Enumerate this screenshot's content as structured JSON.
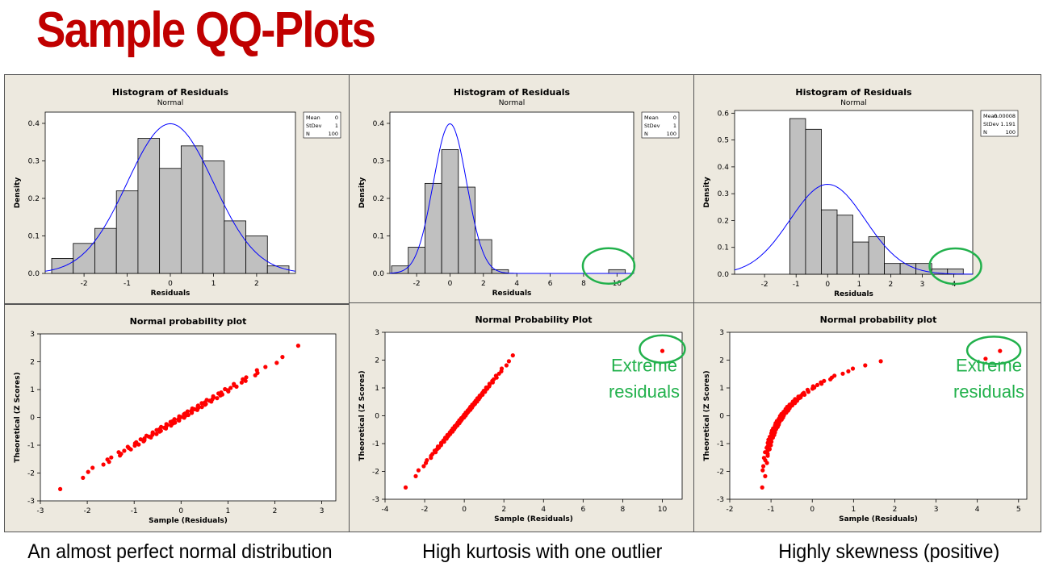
{
  "page": {
    "title": "Sample QQ-Plots"
  },
  "captions": [
    "An almost perfect normal distribution",
    "High kurtosis with one outlier",
    "Highly skewness (positive)"
  ],
  "colors": {
    "title": "#c00000",
    "bars": "#c0c0c0",
    "curve": "#0000ff",
    "points": "#ff0000",
    "highlight": "#22b14c",
    "panel": "#ede9df"
  },
  "chart_data": [
    {
      "type": "bar",
      "title": "Histogram of Residuals",
      "subtitle": "Normal",
      "xlabel": "Residuals",
      "ylabel": "Density",
      "xlim": [
        -2.9,
        2.9
      ],
      "ylim": [
        0,
        0.43
      ],
      "xticks": [
        -2,
        -1,
        0,
        1,
        2
      ],
      "xtick_labels": [
        "-2",
        "-1",
        "0",
        "1",
        "2"
      ],
      "yticks": [
        0,
        0.1,
        0.2,
        0.3,
        0.4
      ],
      "ytick_labels": [
        "0.0",
        "0.1",
        "0.2",
        "0.3",
        "0.4"
      ],
      "bin_edges": [
        -2.75,
        -2.25,
        -1.75,
        -1.25,
        -0.75,
        -0.25,
        0.25,
        0.75,
        1.25,
        1.75,
        2.25,
        2.75
      ],
      "values": [
        0.04,
        0.08,
        0.12,
        0.22,
        0.36,
        0.28,
        0.34,
        0.3,
        0.14,
        0.1,
        0.02
      ],
      "fit_curve": {
        "mean": 0,
        "stdev": 1
      },
      "legend": {
        "rows": [
          [
            "Mean",
            "0"
          ],
          [
            "StDev",
            "1"
          ],
          [
            "N",
            "100"
          ]
        ]
      },
      "highlight": null
    },
    {
      "type": "bar",
      "title": "Histogram of Residuals",
      "subtitle": "Normal",
      "xlabel": "Residuals",
      "ylabel": "Density",
      "xlim": [
        -3.6,
        11
      ],
      "ylim": [
        0,
        0.43
      ],
      "xticks": [
        -2,
        0,
        2,
        4,
        6,
        8,
        10
      ],
      "xtick_labels": [
        "-2",
        "0",
        "2",
        "4",
        "6",
        "8",
        "10"
      ],
      "yticks": [
        0,
        0.1,
        0.2,
        0.3,
        0.4
      ],
      "ytick_labels": [
        "0.0",
        "0.1",
        "0.2",
        "0.3",
        "0.4"
      ],
      "bin_edges": [
        -3.5,
        -2.5,
        -1.5,
        -0.5,
        0.5,
        1.5,
        2.5,
        3.5,
        4.5,
        5.5,
        6.5,
        7.5,
        8.5,
        9.5,
        10.5
      ],
      "values": [
        0.02,
        0.07,
        0.24,
        0.33,
        0.23,
        0.09,
        0.01,
        0,
        0,
        0,
        0,
        0,
        0,
        0.01
      ],
      "fit_curve": {
        "mean": 0,
        "stdev": 1
      },
      "legend": {
        "rows": [
          [
            "Mean",
            "0"
          ],
          [
            "StDev",
            "1"
          ],
          [
            "N",
            "100"
          ]
        ]
      },
      "highlight": {
        "x": 9.5,
        "y": 0.02
      }
    },
    {
      "type": "bar",
      "title": "Histogram of Residuals",
      "subtitle": "Normal",
      "xlabel": "Residuals",
      "ylabel": "Density",
      "xlim": [
        -2.95,
        4.6
      ],
      "ylim": [
        0,
        0.61
      ],
      "xticks": [
        -2,
        -1,
        0,
        1,
        2,
        3,
        4
      ],
      "xtick_labels": [
        "-2",
        "-1",
        "0",
        "1",
        "2",
        "3",
        "4"
      ],
      "yticks": [
        0,
        0.1,
        0.2,
        0.3,
        0.4,
        0.5,
        0.6
      ],
      "ytick_labels": [
        "0.0",
        "0.1",
        "0.2",
        "0.3",
        "0.4",
        "0.5",
        "0.6"
      ],
      "bin_edges": [
        -1.2,
        -0.7,
        -0.2,
        0.3,
        0.8,
        1.3,
        1.8,
        2.3,
        2.8,
        3.3,
        3.8,
        4.3
      ],
      "values": [
        0.58,
        0.54,
        0.24,
        0.22,
        0.12,
        0.14,
        0.04,
        0.04,
        0.04,
        0.02,
        0.02
      ],
      "fit_curve": {
        "mean": 8e-05,
        "stdev": 1.191
      },
      "legend": {
        "rows": [
          [
            "Mean",
            "0.00008"
          ],
          [
            "StDev",
            "1.191"
          ],
          [
            "N",
            "100"
          ]
        ]
      },
      "highlight": {
        "x": 4.05,
        "y": 0.03
      }
    },
    {
      "type": "scatter",
      "title": "Normal probability plot",
      "xlabel": "Sample (Residuals)",
      "ylabel": "Theoretical (Z Scores)",
      "xlim": [
        -3,
        3.3
      ],
      "ylim": [
        -3,
        3
      ],
      "xticks": [
        -3,
        -2,
        -1,
        0,
        1,
        2,
        3
      ],
      "xtick_labels": [
        "-3",
        "-2",
        "-1",
        "0",
        "1",
        "2",
        "3"
      ],
      "yticks": [
        -3,
        -2,
        -1,
        0,
        1,
        2,
        3
      ],
      "ytick_labels": [
        "-3",
        "-2",
        "-1",
        "0",
        "1",
        "2",
        "3"
      ],
      "points": {
        "n": 100,
        "shape": "normal"
      },
      "note": null,
      "highlight": null
    },
    {
      "type": "scatter",
      "title": "Normal Probability Plot",
      "xlabel": "Sample (Residuals)",
      "ylabel": "Theoretical (Z Scores)",
      "xlim": [
        -4,
        11
      ],
      "ylim": [
        -3,
        3
      ],
      "xticks": [
        -4,
        -2,
        0,
        2,
        4,
        6,
        8,
        10
      ],
      "xtick_labels": [
        "-4",
        "-2",
        "0",
        "2",
        "4",
        "6",
        "8",
        "10"
      ],
      "yticks": [
        -3,
        -2,
        -1,
        0,
        1,
        2,
        3
      ],
      "ytick_labels": [
        "-3",
        "-2",
        "-1",
        "0",
        "1",
        "2",
        "3"
      ],
      "points": {
        "n": 100,
        "shape": "kurtosis",
        "outlier": [
          10,
          2.33
        ]
      },
      "note": "Extreme residuals",
      "highlight": {
        "x": 10,
        "y": 2.4
      }
    },
    {
      "type": "scatter",
      "title": "Normal probability plot",
      "xlabel": "Sample (Residuals)",
      "ylabel": "Theoretical (Z Scores)",
      "xlim": [
        -2,
        5.2
      ],
      "ylim": [
        -3,
        3
      ],
      "xticks": [
        -2,
        -1,
        0,
        1,
        2,
        3,
        4,
        5
      ],
      "xtick_labels": [
        "-2",
        "-1",
        "0",
        "1",
        "2",
        "3",
        "4",
        "5"
      ],
      "yticks": [
        -3,
        -2,
        -1,
        0,
        1,
        2,
        3
      ],
      "ytick_labels": [
        "-3",
        "-2",
        "-1",
        "0",
        "1",
        "2",
        "3"
      ],
      "points": {
        "n": 100,
        "shape": "skew",
        "outliers": [
          [
            4.2,
            2.05
          ],
          [
            4.55,
            2.33
          ]
        ]
      },
      "note": "Extreme residuals",
      "highlight": {
        "x": 4.4,
        "y": 2.35
      }
    }
  ]
}
